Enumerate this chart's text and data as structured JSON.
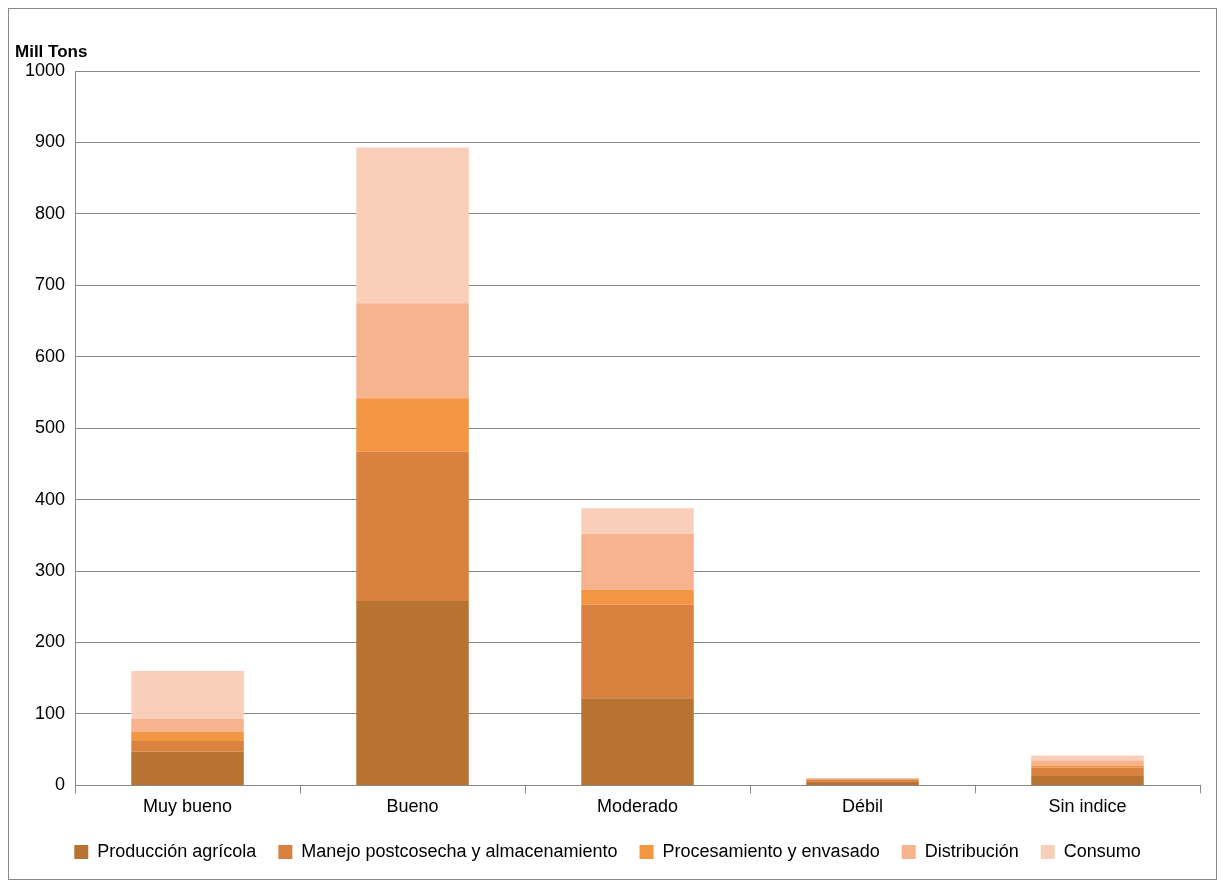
{
  "chart_data": {
    "type": "bar",
    "ylabel": "Mill Tons",
    "stacked": true,
    "categories": [
      "Muy bueno",
      "Bueno",
      "Moderado",
      "Débil",
      "Sin indice"
    ],
    "series": [
      {
        "name": "Producción agrícola",
        "color": "#b87333",
        "values": [
          47,
          258,
          122,
          5,
          13
        ]
      },
      {
        "name": "Manejo postcosecha y almacenamiento",
        "color": "#d9823f",
        "values": [
          15,
          209,
          131,
          3,
          12
        ]
      },
      {
        "name": "Procesamiento y envasado",
        "color": "#f39644",
        "values": [
          13,
          75,
          21,
          1,
          3
        ]
      },
      {
        "name": "Distribución",
        "color": "#f6b38e",
        "values": [
          18,
          133,
          78,
          1,
          7
        ]
      },
      {
        "name": "Consumo",
        "color": "#f9cfb9",
        "values": [
          67,
          218,
          36,
          0,
          7
        ]
      }
    ],
    "ylim": [
      0,
      1000
    ],
    "yticks": [
      0,
      100,
      200,
      300,
      400,
      500,
      600,
      700,
      800,
      900,
      1000
    ],
    "grid": "y",
    "legend": "bottom"
  }
}
